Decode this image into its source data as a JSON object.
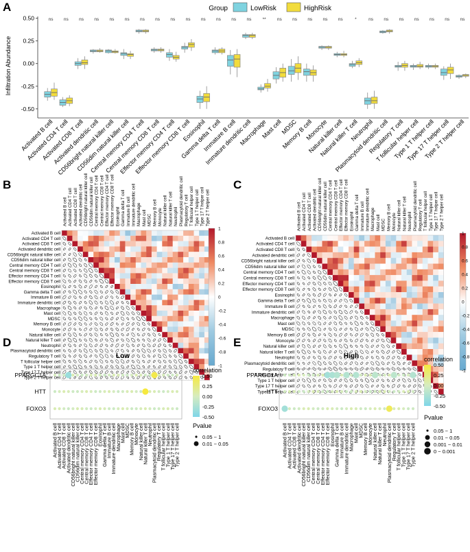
{
  "cells": [
    "Activated B cell",
    "Activated CD4 T cell",
    "Activated CD8 T cell",
    "Activated dendritic cell",
    "CD56bright natural killer cell",
    "CD56dim natural killer cell",
    "Central memory CD4 T cell",
    "Central memory CD8 T cell",
    "Effector memory CD4 T cell",
    "Effector memory CD8 T cell",
    "Eosinophil",
    "Gamma delta T cell",
    "Immature  B cell",
    "Immature dendritic cell",
    "Macrophage",
    "Mast cell",
    "MDSC",
    "Memory B cell",
    "Monocyte",
    "Natural killer cell",
    "Natural killer T cell",
    "Neutrophil",
    "Plasmacytoid dendritic cell",
    "Regulatory T cell",
    "T follicular helper cell",
    "Type 1 T helper cell",
    "Type 17 T helper cell",
    "Type 2 T helper cell"
  ],
  "panels": {
    "a": "A",
    "b": "B",
    "c": "C",
    "d": "D",
    "e": "E"
  },
  "colors": {
    "low": "#7fd3e0",
    "high": "#f2dc3c",
    "pos": "#b2182b",
    "neg": "#67a9cf"
  },
  "chart_data": [
    {
      "type": "box",
      "panel": "A",
      "legend": {
        "title": "Group",
        "low": "LowRisk",
        "high": "HighRisk",
        "position": "top"
      },
      "ylabel": "Infiltration Abundance",
      "ylim": [
        -0.6,
        0.52
      ],
      "yticks": [
        "0.50",
        "0.25",
        "0.00",
        "-0.25",
        "-0.50"
      ],
      "yticks_values": [
        0.5,
        0.25,
        0,
        -0.25,
        -0.5
      ],
      "signif": [
        "ns",
        "ns",
        "ns",
        "ns",
        "ns",
        "ns",
        "ns",
        "ns",
        "ns",
        "ns",
        "ns",
        "ns",
        "ns",
        "ns",
        "**",
        "ns",
        "ns",
        "ns",
        "ns",
        "ns",
        "*",
        "ns",
        "ns",
        "ns",
        "ns",
        "ns",
        "ns",
        "ns"
      ],
      "low": [
        [
          -0.41,
          -0.37,
          -0.34,
          -0.31,
          -0.27
        ],
        [
          -0.48,
          -0.46,
          -0.43,
          -0.4,
          -0.37
        ],
        [
          -0.06,
          -0.02,
          0.0,
          0.02,
          0.06
        ],
        [
          0.11,
          0.13,
          0.14,
          0.15,
          0.16
        ],
        [
          0.11,
          0.12,
          0.14,
          0.15,
          0.16
        ],
        [
          0.05,
          0.09,
          0.11,
          0.12,
          0.16
        ],
        [
          0.33,
          0.35,
          0.36,
          0.37,
          0.38
        ],
        [
          0.12,
          0.14,
          0.15,
          0.16,
          0.18
        ],
        [
          0.03,
          0.07,
          0.1,
          0.12,
          0.16
        ],
        [
          0.12,
          0.16,
          0.18,
          0.19,
          0.23
        ],
        [
          -0.5,
          -0.43,
          -0.39,
          -0.36,
          -0.3
        ],
        [
          0.1,
          0.12,
          0.14,
          0.15,
          0.18
        ],
        [
          -0.12,
          -0.03,
          0.04,
          0.09,
          0.15
        ],
        [
          0.27,
          0.29,
          0.31,
          0.32,
          0.34
        ],
        [
          -0.32,
          -0.29,
          -0.28,
          -0.26,
          -0.23
        ],
        [
          -0.22,
          -0.17,
          -0.13,
          -0.09,
          -0.04
        ],
        [
          -0.2,
          -0.12,
          -0.08,
          -0.03,
          0.05
        ],
        [
          -0.2,
          -0.13,
          -0.09,
          -0.06,
          0.0
        ],
        [
          0.15,
          0.17,
          0.18,
          0.19,
          0.2
        ],
        [
          0.07,
          0.09,
          0.1,
          0.11,
          0.13
        ],
        [
          -0.05,
          -0.03,
          -0.01,
          0.0,
          0.03
        ],
        [
          -0.5,
          -0.45,
          -0.41,
          -0.38,
          -0.32
        ],
        [
          0.33,
          0.34,
          0.35,
          0.36,
          0.37
        ],
        [
          -0.08,
          -0.04,
          -0.03,
          -0.02,
          0.02
        ],
        [
          -0.07,
          -0.04,
          -0.03,
          -0.02,
          0.0
        ],
        [
          -0.06,
          -0.04,
          -0.03,
          -0.02,
          0.0
        ],
        [
          -0.18,
          -0.13,
          -0.1,
          -0.06,
          -0.03
        ],
        [
          -0.17,
          -0.15,
          -0.14,
          -0.13,
          -0.12
        ]
      ],
      "high": [
        [
          -0.4,
          -0.36,
          -0.32,
          -0.28,
          -0.21
        ],
        [
          -0.47,
          -0.44,
          -0.41,
          -0.38,
          -0.35
        ],
        [
          -0.06,
          -0.01,
          0.01,
          0.04,
          0.08
        ],
        [
          0.12,
          0.13,
          0.14,
          0.15,
          0.17
        ],
        [
          0.11,
          0.12,
          0.13,
          0.14,
          0.16
        ],
        [
          0.05,
          0.08,
          0.1,
          0.11,
          0.14
        ],
        [
          0.33,
          0.35,
          0.36,
          0.37,
          0.38
        ],
        [
          0.12,
          0.14,
          0.15,
          0.16,
          0.18
        ],
        [
          0.02,
          0.05,
          0.07,
          0.09,
          0.13
        ],
        [
          0.14,
          0.18,
          0.21,
          0.23,
          0.27
        ],
        [
          -0.5,
          -0.42,
          -0.37,
          -0.33,
          -0.25
        ],
        [
          0.1,
          0.12,
          0.14,
          0.16,
          0.18
        ],
        [
          -0.15,
          -0.04,
          0.05,
          0.1,
          0.16
        ],
        [
          0.27,
          0.29,
          0.31,
          0.32,
          0.34
        ],
        [
          -0.31,
          -0.27,
          -0.25,
          -0.22,
          -0.17
        ],
        [
          -0.2,
          -0.15,
          -0.1,
          -0.05,
          0.0
        ],
        [
          -0.18,
          -0.1,
          -0.05,
          0.0,
          0.08
        ],
        [
          -0.2,
          -0.13,
          -0.1,
          -0.07,
          -0.02
        ],
        [
          0.15,
          0.17,
          0.18,
          0.19,
          0.2
        ],
        [
          0.07,
          0.09,
          0.1,
          0.11,
          0.14
        ],
        [
          -0.04,
          -0.01,
          0.01,
          0.03,
          0.06
        ],
        [
          -0.5,
          -0.44,
          -0.41,
          -0.37,
          -0.3
        ],
        [
          0.33,
          0.35,
          0.36,
          0.37,
          0.38
        ],
        [
          -0.08,
          -0.04,
          -0.02,
          0.0,
          0.03
        ],
        [
          -0.06,
          -0.04,
          -0.03,
          -0.01,
          0.02
        ],
        [
          -0.06,
          -0.04,
          -0.03,
          -0.02,
          0.0
        ],
        [
          -0.17,
          -0.11,
          -0.07,
          -0.04,
          0.0
        ],
        [
          -0.16,
          -0.14,
          -0.13,
          -0.12,
          -0.11
        ]
      ]
    },
    {
      "type": "heatmap",
      "panel": "B",
      "colorbar_ticks": [
        "1",
        "0.8",
        "0.6",
        "0.4",
        "0.2",
        "0",
        "-0.2",
        "-0.4",
        "-0.6",
        "-0.8",
        "-1"
      ],
      "colorbar_values": [
        1,
        0.8,
        0.6,
        0.4,
        0.2,
        0,
        -0.2,
        -0.4,
        -0.6,
        -0.8,
        -1
      ],
      "value_range": [
        -1,
        1
      ]
    },
    {
      "type": "heatmap",
      "panel": "C",
      "colorbar_ticks": [
        "1",
        "0.8",
        "0.6",
        "0.4",
        "0.2",
        "0",
        "-0.2",
        "-0.4",
        "-0.6",
        "-0.8",
        "-1"
      ],
      "colorbar_values": [
        1,
        0.8,
        0.6,
        0.4,
        0.2,
        0,
        -0.2,
        -0.4,
        -0.6,
        -0.8,
        -1
      ],
      "value_range": [
        -1,
        1
      ]
    },
    {
      "type": "scatter",
      "panel": "D",
      "title": "Low",
      "genes": [
        "PPARGC1A",
        "HTT",
        "FOXO3"
      ],
      "legend": {
        "corr_title": "correlation",
        "corr_ticks": [
          "0.50",
          "0.25",
          "0.00",
          "-0.25",
          "-0.50"
        ],
        "p_title": "Pvalue",
        "p_labels": [
          "0.05 ~ 1",
          "0.01 ~ 0.05"
        ]
      },
      "highlights": [
        {
          "gene": "PPARGC1A",
          "cell": 3,
          "corr": -0.35,
          "p": "0.01 ~ 0.05"
        },
        {
          "gene": "PPARGC1A",
          "cell": 22,
          "corr": 0.45,
          "p": "0.01 ~ 0.05"
        },
        {
          "gene": "HTT",
          "cell": 20,
          "corr": 0.5,
          "p": "0.01 ~ 0.05"
        }
      ]
    },
    {
      "type": "scatter",
      "panel": "E",
      "title": "High",
      "genes": [
        "PPARGC1A",
        "HTT",
        "FOXO3"
      ],
      "legend": {
        "corr_title": "correlation",
        "corr_ticks": [
          "0.50",
          "0.25",
          "0.00",
          "-0.25",
          "-0.50"
        ],
        "p_title": "Pvalue",
        "p_labels": [
          "0.05 ~ 1",
          "0.01 ~ 0.05",
          "0.001 ~ 0.01",
          "0 ~ 0.001"
        ]
      },
      "highlights": [
        {
          "gene": "PPARGC1A",
          "cell": 9,
          "corr": -0.3,
          "p": "0.01 ~ 0.05"
        },
        {
          "gene": "PPARGC1A",
          "cell": 10,
          "corr": -0.25,
          "p": "0.01 ~ 0.05"
        },
        {
          "gene": "PPARGC1A",
          "cell": 11,
          "corr": -0.2,
          "p": "0.01 ~ 0.05"
        },
        {
          "gene": "PPARGC1A",
          "cell": 13,
          "corr": -0.2,
          "p": "0.01 ~ 0.05"
        },
        {
          "gene": "PPARGC1A",
          "cell": 15,
          "corr": -0.2,
          "p": "0.01 ~ 0.05"
        },
        {
          "gene": "PPARGC1A",
          "cell": 19,
          "corr": -0.15,
          "p": "0.01 ~ 0.05"
        },
        {
          "gene": "PPARGC1A",
          "cell": 23,
          "corr": -0.15,
          "p": "0.01 ~ 0.05"
        },
        {
          "gene": "PPARGC1A",
          "cell": 27,
          "corr": -0.2,
          "p": "0.01 ~ 0.05"
        },
        {
          "gene": "FOXO3",
          "cell": 0,
          "corr": -0.3,
          "p": "0.01 ~ 0.05"
        },
        {
          "gene": "FOXO3",
          "cell": 22,
          "corr": 0.4,
          "p": "0.01 ~ 0.05"
        }
      ]
    }
  ]
}
